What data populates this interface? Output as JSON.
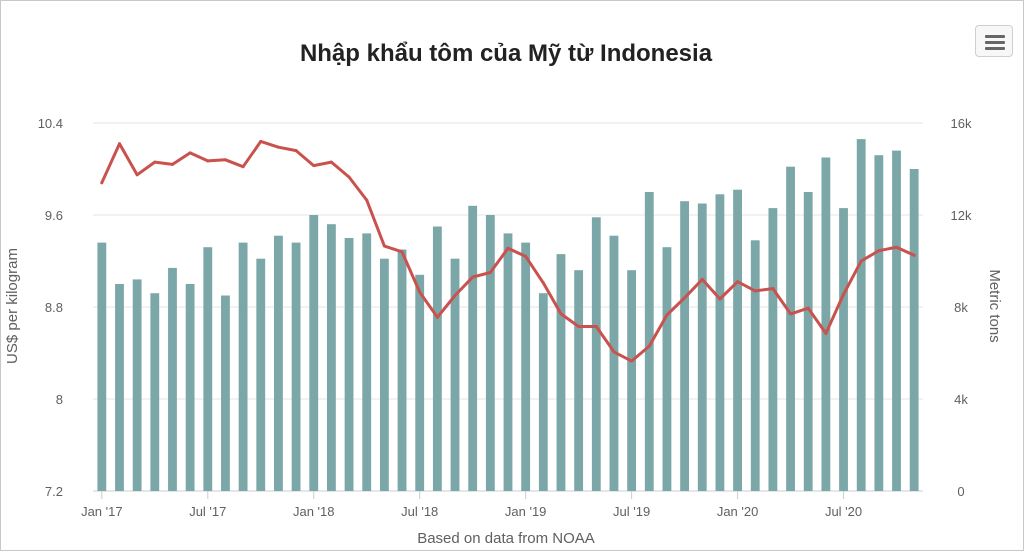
{
  "chart_data": {
    "type": "bar+line",
    "title": "Nhập khẩu tôm của Mỹ từ Indonesia",
    "credit": "Based on data from NOAA",
    "y_left": {
      "label": "US$ per kilogram",
      "range": [
        7.2,
        10.4
      ],
      "ticks": [
        "7.2",
        "8",
        "8.8",
        "9.6",
        "10.4"
      ],
      "tick_values": [
        7.2,
        8.0,
        8.8,
        9.6,
        10.4
      ]
    },
    "y_right": {
      "label": "Metric tons",
      "range": [
        0,
        16000
      ],
      "ticks": [
        "0",
        "4k",
        "8k",
        "12k",
        "16k"
      ],
      "tick_values": [
        0,
        4000,
        8000,
        12000,
        16000
      ]
    },
    "x_ticks": [
      "Jan '17",
      "Jul '17",
      "Jan '18",
      "Jul '18",
      "Jan '19",
      "Jul '19",
      "Jan '20",
      "Jul '20"
    ],
    "x_tick_index": [
      0,
      6,
      12,
      18,
      24,
      30,
      36,
      42
    ],
    "months": [
      "2017-01",
      "2017-02",
      "2017-03",
      "2017-04",
      "2017-05",
      "2017-06",
      "2017-07",
      "2017-08",
      "2017-09",
      "2017-10",
      "2017-11",
      "2017-12",
      "2018-01",
      "2018-02",
      "2018-03",
      "2018-04",
      "2018-05",
      "2018-06",
      "2018-07",
      "2018-08",
      "2018-09",
      "2018-10",
      "2018-11",
      "2018-12",
      "2019-01",
      "2019-02",
      "2019-03",
      "2019-04",
      "2019-05",
      "2019-06",
      "2019-07",
      "2019-08",
      "2019-09",
      "2019-10",
      "2019-11",
      "2019-12",
      "2020-01",
      "2020-02",
      "2020-03",
      "2020-04",
      "2020-05",
      "2020-06",
      "2020-07",
      "2020-08",
      "2020-09",
      "2020-10",
      "2020-11"
    ],
    "series": [
      {
        "name": "Metric tons",
        "type": "bar",
        "axis": "right",
        "color": "#7ba7a9",
        "values": [
          10800,
          9000,
          9200,
          8600,
          9700,
          9000,
          10600,
          8500,
          10800,
          10100,
          11100,
          10800,
          12000,
          11600,
          11000,
          11200,
          10100,
          10500,
          9400,
          11500,
          10100,
          12400,
          12000,
          11200,
          10800,
          8600,
          10300,
          9600,
          11900,
          11100,
          9600,
          13000,
          10600,
          12600,
          12500,
          12900,
          13100,
          10900,
          12300,
          14100,
          13000,
          14500,
          12300,
          15300,
          14600,
          14800,
          14000
        ]
      },
      {
        "name": "US$ per kilogram",
        "type": "line",
        "axis": "left",
        "color": "#c9524e",
        "values": [
          9.88,
          10.22,
          9.95,
          10.06,
          10.04,
          10.14,
          10.07,
          10.08,
          10.02,
          10.24,
          10.19,
          10.16,
          10.03,
          10.06,
          9.93,
          9.73,
          9.33,
          9.28,
          8.93,
          8.71,
          8.9,
          9.06,
          9.1,
          9.31,
          9.24,
          9.01,
          8.74,
          8.63,
          8.63,
          8.41,
          8.33,
          8.46,
          8.73,
          8.88,
          9.04,
          8.87,
          9.02,
          8.94,
          8.96,
          8.74,
          8.79,
          8.57,
          8.91,
          9.2,
          9.29,
          9.32,
          9.25
        ]
      }
    ],
    "grid": true,
    "legend": "none"
  },
  "toolbar": {
    "menu_icon": "hamburger-icon"
  }
}
